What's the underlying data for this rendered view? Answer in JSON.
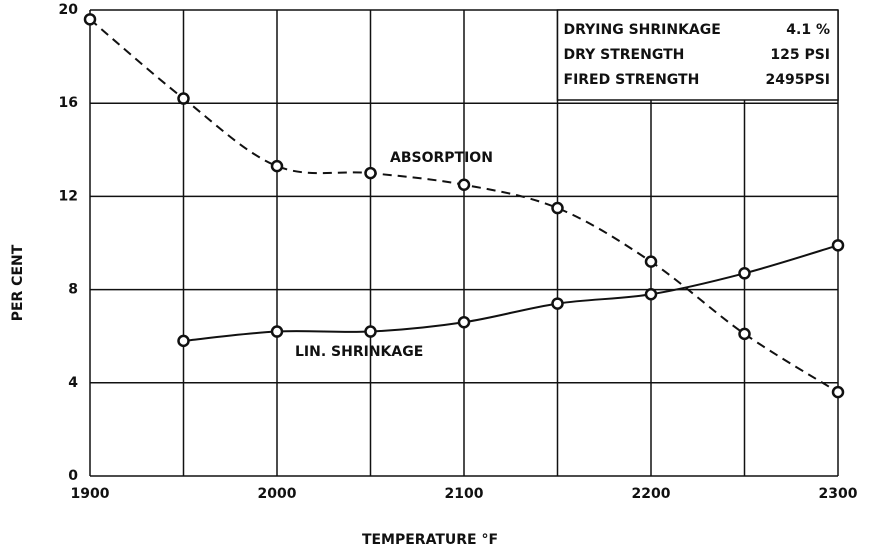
{
  "chart_data": {
    "type": "line",
    "xlabel": "TEMPERATURE °F",
    "ylabel": "PER CENT",
    "x": [
      1900,
      1950,
      2000,
      2050,
      2100,
      2150,
      2200,
      2250,
      2300
    ],
    "series": [
      {
        "name": "ABSORPTION",
        "color": "#111111",
        "dash": true,
        "values": [
          19.6,
          16.2,
          13.3,
          13.0,
          12.5,
          11.5,
          9.2,
          6.1,
          3.6
        ]
      },
      {
        "name": "LIN. SHRINKAGE",
        "color": "#111111",
        "dash": false,
        "values": [
          null,
          5.8,
          6.2,
          6.2,
          6.6,
          7.4,
          7.8,
          8.7,
          9.9
        ]
      }
    ],
    "xlim": [
      1900,
      2300
    ],
    "xticks": [
      1900,
      2000,
      2100,
      2200,
      2300
    ],
    "xgrid_minor": [
      1950,
      2050,
      2150,
      2250
    ],
    "ylim": [
      0,
      20
    ],
    "yticks": [
      0,
      4,
      8,
      12,
      16,
      20
    ],
    "grid": true,
    "annotations": [
      {
        "label": "DRYING SHRINKAGE",
        "value": "4.1 %"
      },
      {
        "label": "DRY STRENGTH",
        "value": "125 PSI"
      },
      {
        "label": "FIRED STRENGTH",
        "value": "2495PSI"
      }
    ]
  }
}
